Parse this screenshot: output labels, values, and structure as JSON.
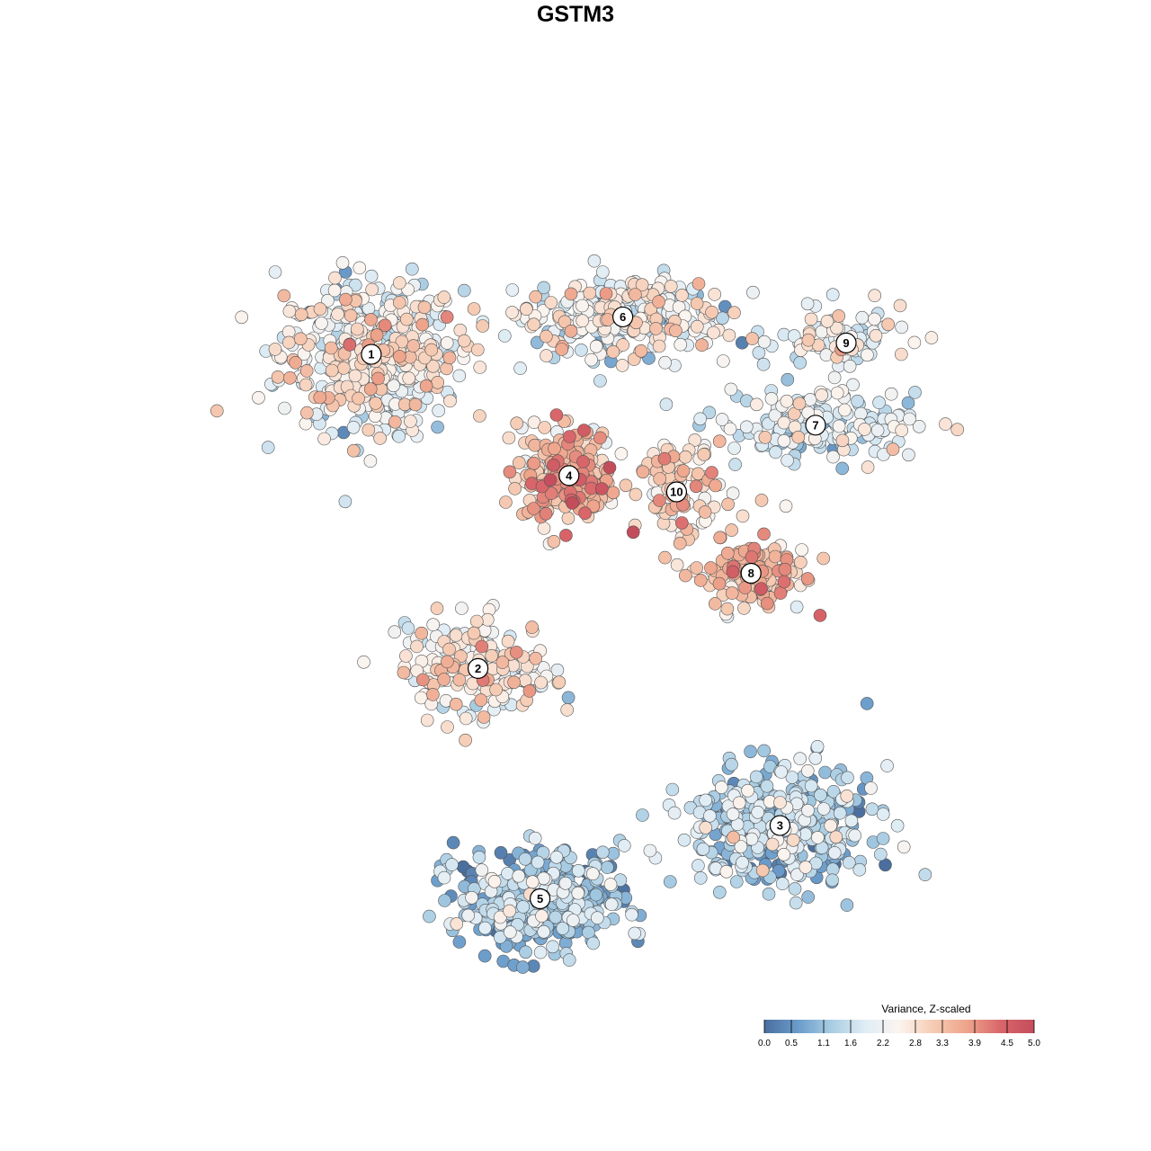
{
  "chart_data": {
    "type": "scatter",
    "title": "GSTM3",
    "legend": {
      "title": "Variance, Z-scaled",
      "position": "bottom-right",
      "ticks": [
        "0.0",
        "0.5",
        "1.1",
        "1.6",
        "2.2",
        "2.8",
        "3.3",
        "3.9",
        "4.5",
        "5.0"
      ],
      "range": [
        0,
        5
      ],
      "colors": [
        "#4a6f9e",
        "#6a9ccb",
        "#a9cde3",
        "#e0edf5",
        "#fbf4ef",
        "#f6ccb4",
        "#eea48b",
        "#d9666a",
        "#c44d5c"
      ]
    },
    "clusters": [
      {
        "label": "1",
        "x": 0.226,
        "y": 0.769,
        "level": 0.45,
        "spread": [
          0.11,
          0.09
        ],
        "n": 520
      },
      {
        "label": "6",
        "x": 0.53,
        "y": 0.815,
        "level": 0.43,
        "spread": [
          0.12,
          0.05
        ],
        "n": 300
      },
      {
        "label": "9",
        "x": 0.8,
        "y": 0.783,
        "level": 0.42,
        "spread": [
          0.08,
          0.04
        ],
        "n": 90
      },
      {
        "label": "7",
        "x": 0.763,
        "y": 0.682,
        "level": 0.35,
        "spread": [
          0.12,
          0.04
        ],
        "n": 170
      },
      {
        "label": "4",
        "x": 0.465,
        "y": 0.62,
        "level": 0.65,
        "spread": [
          0.06,
          0.06
        ],
        "n": 260
      },
      {
        "label": "10",
        "x": 0.595,
        "y": 0.6,
        "level": 0.6,
        "spread": [
          0.05,
          0.05
        ],
        "n": 90
      },
      {
        "label": "8",
        "x": 0.685,
        "y": 0.5,
        "level": 0.62,
        "spread": [
          0.07,
          0.05
        ],
        "n": 130
      },
      {
        "label": "2",
        "x": 0.355,
        "y": 0.383,
        "level": 0.5,
        "spread": [
          0.09,
          0.06
        ],
        "n": 200
      },
      {
        "label": "3",
        "x": 0.72,
        "y": 0.19,
        "level": 0.25,
        "spread": [
          0.11,
          0.07
        ],
        "n": 440
      },
      {
        "label": "5",
        "x": 0.43,
        "y": 0.1,
        "level": 0.22,
        "spread": [
          0.1,
          0.06
        ],
        "n": 400
      }
    ]
  }
}
